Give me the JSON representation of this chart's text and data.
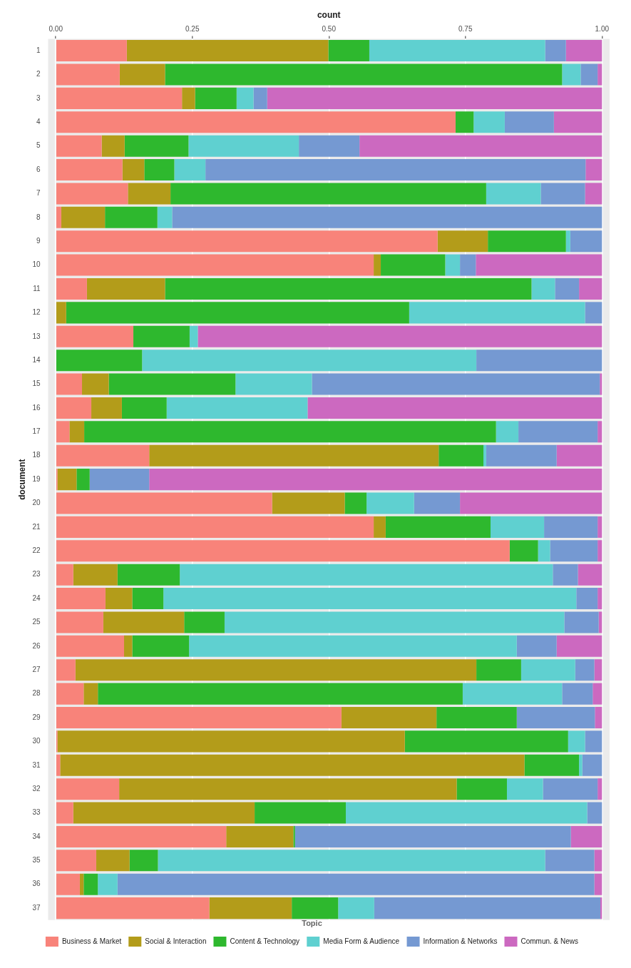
{
  "chart_data": {
    "type": "bar",
    "orientation": "horizontal",
    "stacked": true,
    "xlabel": "count",
    "ylabel": "document",
    "legend_title": "Topic",
    "legend": "bottom",
    "grid": "x",
    "categories": [
      "1",
      "2",
      "3",
      "4",
      "5",
      "6",
      "7",
      "8",
      "9",
      "10",
      "11",
      "12",
      "13",
      "14",
      "15",
      "16",
      "17",
      "18",
      "19",
      "20",
      "21",
      "22",
      "23",
      "24",
      "25",
      "26",
      "27",
      "28",
      "29",
      "30",
      "31",
      "32",
      "33",
      "34",
      "35",
      "36",
      "37"
    ],
    "xlim": [
      -0.014,
      1.014
    ],
    "xticks": [
      {
        "value": 0,
        "label": "0.00"
      },
      {
        "value": 0.25,
        "label": "0.25"
      },
      {
        "value": 0.5,
        "label": "0.50"
      },
      {
        "value": 0.75,
        "label": "0.75"
      },
      {
        "value": 1,
        "label": "1.00"
      }
    ],
    "series": [
      {
        "name": "Business & Market",
        "color": "#f8837a",
        "values": [
          0.13,
          0.117,
          0.231,
          0.732,
          0.084,
          0.122,
          0.132,
          0.01,
          0.699,
          0.582,
          0.057,
          0,
          0.142,
          0,
          0.048,
          0.065,
          0.025,
          0.171,
          0.003,
          0.396,
          0.582,
          0.831,
          0.032,
          0.091,
          0.087,
          0.125,
          0.036,
          0.051,
          0.523,
          0.003,
          0.008,
          0.116,
          0.032,
          0.312,
          0.074,
          0.044,
          0.281
        ]
      },
      {
        "name": "Social & Interaction",
        "color": "#b39c1a",
        "values": [
          0.369,
          0.083,
          0.024,
          0,
          0.042,
          0.04,
          0.078,
          0.08,
          0.092,
          0.013,
          0.143,
          0.019,
          0,
          0,
          0.049,
          0.056,
          0.027,
          0.53,
          0.035,
          0.133,
          0.022,
          0,
          0.081,
          0.049,
          0.148,
          0.015,
          0.734,
          0.026,
          0.174,
          0.636,
          0.85,
          0.618,
          0.332,
          0.123,
          0.061,
          0.007,
          0.151
        ]
      },
      {
        "name": "Content & Technology",
        "color": "#2eb82e",
        "values": [
          0.075,
          0.727,
          0.076,
          0.033,
          0.117,
          0.055,
          0.578,
          0.096,
          0.143,
          0.118,
          0.671,
          0.628,
          0.103,
          0.158,
          0.232,
          0.082,
          0.754,
          0.082,
          0.024,
          0.04,
          0.192,
          0.052,
          0.114,
          0.057,
          0.074,
          0.104,
          0.082,
          0.668,
          0.147,
          0.299,
          0.1,
          0.092,
          0.167,
          0.003,
          0.052,
          0.026,
          0.085
        ]
      },
      {
        "name": "Media Form & Audience",
        "color": "#5fd0d0",
        "values": [
          0.322,
          0.034,
          0.031,
          0.057,
          0.202,
          0.057,
          0.1,
          0.027,
          0.008,
          0.027,
          0.043,
          0.322,
          0.015,
          0.612,
          0.14,
          0.258,
          0.041,
          0.005,
          0,
          0.087,
          0.098,
          0.022,
          0.683,
          0.756,
          0.622,
          0.6,
          0.099,
          0.182,
          0,
          0.031,
          0.006,
          0.066,
          0.442,
          0,
          0.709,
          0.036,
          0.066
        ]
      },
      {
        "name": "Information & Networks",
        "color": "#7599d2",
        "values": [
          0.038,
          0.031,
          0.025,
          0.09,
          0.111,
          0.696,
          0.081,
          0.787,
          0.058,
          0.029,
          0.044,
          0.031,
          0,
          0.23,
          0.527,
          0,
          0.145,
          0.129,
          0.109,
          0.084,
          0.098,
          0.087,
          0.046,
          0.039,
          0.063,
          0.073,
          0.035,
          0.056,
          0.143,
          0.031,
          0.036,
          0.1,
          0.027,
          0.505,
          0.09,
          0.873,
          0.414
        ]
      },
      {
        "name": "Commun. & News",
        "color": "#cc69c0",
        "values": [
          0.066,
          0.008,
          0.613,
          0.088,
          0.444,
          0.03,
          0.031,
          0,
          0,
          0.231,
          0.042,
          0,
          0.74,
          0,
          0.004,
          0.539,
          0.008,
          0.083,
          0.829,
          0.26,
          0.008,
          0.008,
          0.044,
          0.008,
          0.006,
          0.083,
          0.014,
          0.017,
          0.013,
          0,
          0,
          0.008,
          0,
          0.057,
          0.014,
          0.014,
          0.003
        ]
      }
    ]
  }
}
